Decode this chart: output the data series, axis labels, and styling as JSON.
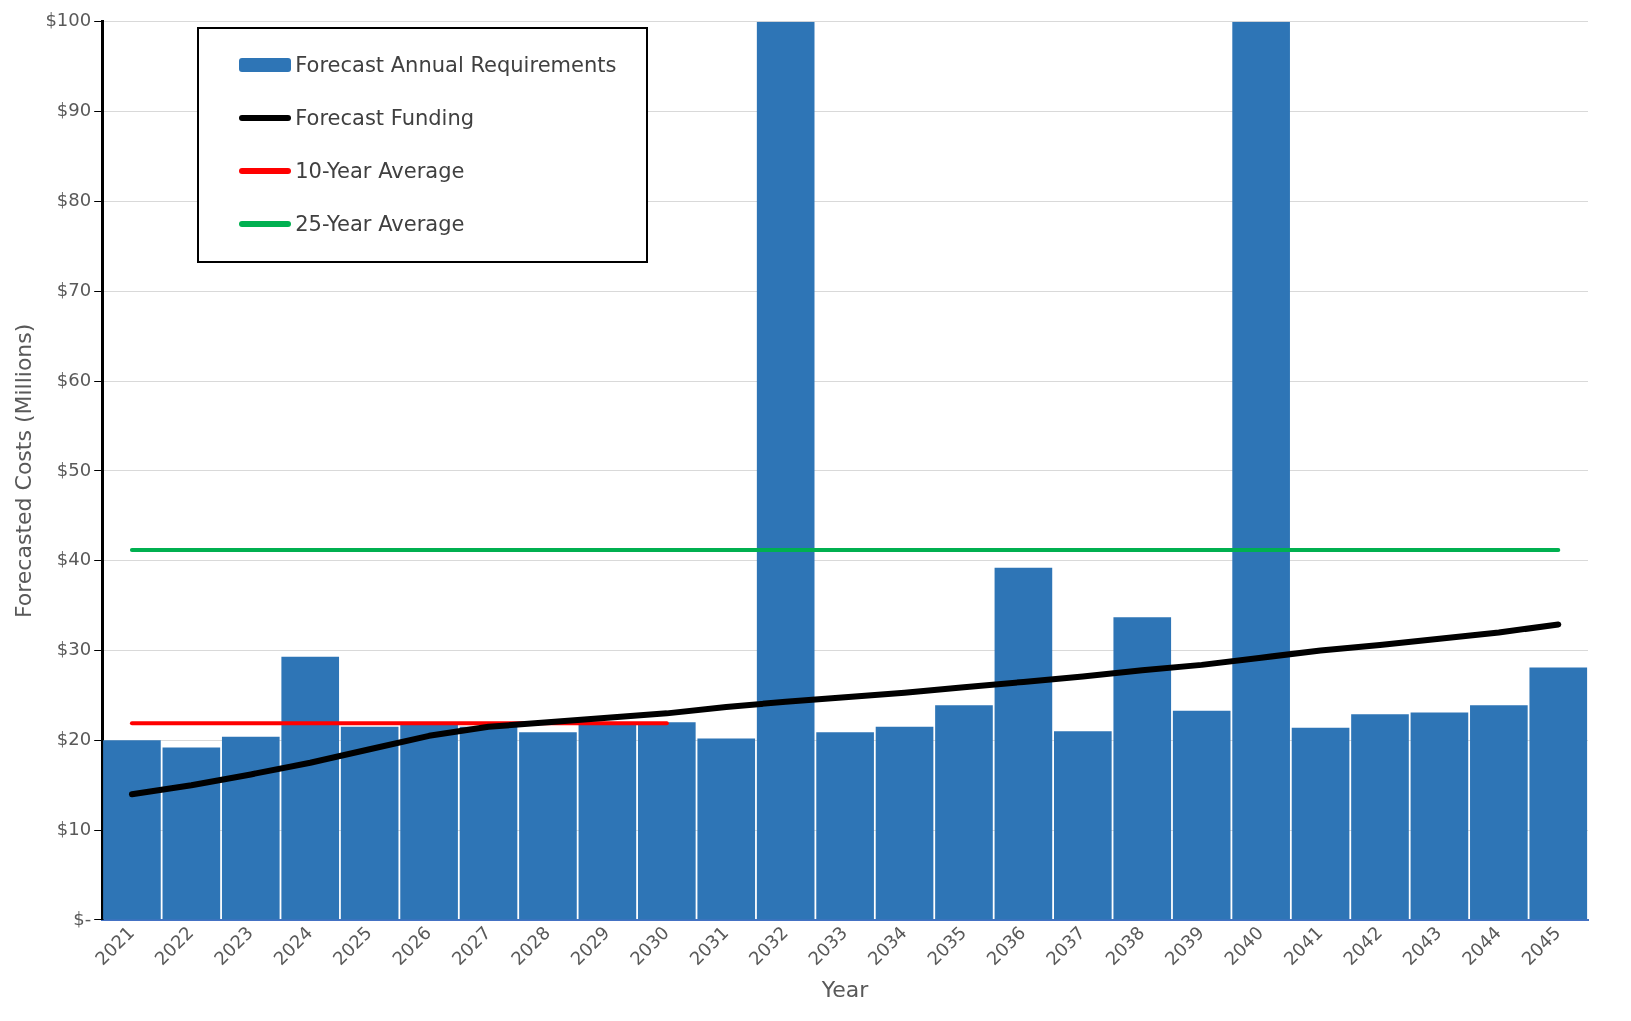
{
  "chart_data": {
    "type": "bar",
    "xlabel": "Year",
    "ylabel": "Forecasted Costs (Millions)",
    "categories": [
      "2021",
      "2022",
      "2023",
      "2024",
      "2025",
      "2026",
      "2027",
      "2028",
      "2029",
      "2030",
      "2031",
      "2032",
      "2033",
      "2034",
      "2035",
      "2036",
      "2037",
      "2038",
      "2039",
      "2040",
      "2041",
      "2042",
      "2043",
      "2044",
      "2045"
    ],
    "series": [
      {
        "name": "Forecast Annual Requirements",
        "color": "#2e75b6",
        "values": [
          20.0,
          19.2,
          20.4,
          29.3,
          21.5,
          22.0,
          21.5,
          20.9,
          21.8,
          22.0,
          20.2,
          100,
          20.9,
          21.5,
          23.9,
          39.2,
          21.0,
          33.7,
          23.3,
          100,
          21.4,
          22.9,
          23.1,
          23.9,
          28.1
        ]
      },
      {
        "name": "Forecast Funding",
        "type": "line",
        "color": "#000000",
        "values": [
          14.0,
          15.0,
          16.2,
          17.5,
          19.0,
          20.5,
          21.5,
          22.0,
          22.5,
          23.0,
          23.7,
          24.3,
          24.8,
          25.3,
          25.9,
          26.5,
          27.1,
          27.8,
          28.4,
          29.2,
          30.0,
          30.6,
          31.3,
          32.0,
          32.9
        ]
      },
      {
        "name": "10-Year Average",
        "type": "line",
        "color": "#ff0000",
        "values": [
          21.9,
          21.9,
          21.9,
          21.9,
          21.9,
          21.9,
          21.9,
          21.9,
          21.9,
          21.9,
          null,
          null,
          null,
          null,
          null,
          null,
          null,
          null,
          null,
          null,
          null,
          null,
          null,
          null,
          null
        ]
      },
      {
        "name": "25-Year Average",
        "type": "line",
        "color": "#00b050",
        "values": [
          41.2,
          41.2,
          41.2,
          41.2,
          41.2,
          41.2,
          41.2,
          41.2,
          41.2,
          41.2,
          41.2,
          41.2,
          41.2,
          41.2,
          41.2,
          41.2,
          41.2,
          41.2,
          41.2,
          41.2,
          41.2,
          41.2,
          41.2,
          41.2,
          41.2
        ]
      }
    ],
    "ylim": [
      0,
      100
    ],
    "yticks": [
      {
        "value": 0,
        "label": "$-"
      },
      {
        "value": 10,
        "label": "$10"
      },
      {
        "value": 20,
        "label": "$20"
      },
      {
        "value": 30,
        "label": "$30"
      },
      {
        "value": 40,
        "label": "$40"
      },
      {
        "value": 50,
        "label": "$50"
      },
      {
        "value": 60,
        "label": "$60"
      },
      {
        "value": 70,
        "label": "$70"
      },
      {
        "value": 80,
        "label": "$80"
      },
      {
        "value": 90,
        "label": "$90"
      },
      {
        "value": 100,
        "label": "$100"
      }
    ],
    "grid": "y",
    "legend": "top left"
  }
}
